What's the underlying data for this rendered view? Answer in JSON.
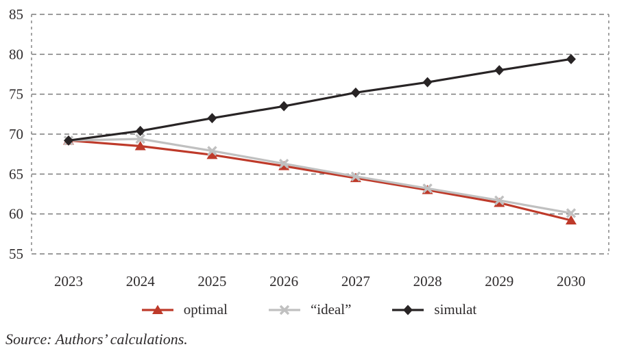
{
  "figure": {
    "source_note": "Source: Authors’ calculations."
  },
  "style": {
    "background": "#ffffff",
    "grid_color": "#7c7c7c",
    "axis_text_color": "#2e2b2c"
  },
  "chart_data": {
    "type": "line",
    "title": "",
    "xlabel": "",
    "ylabel": "",
    "grid": "horizontal-dashed",
    "legend_position": "bottom",
    "categories": [
      "2023",
      "2024",
      "2025",
      "2026",
      "2027",
      "2028",
      "2029",
      "2030"
    ],
    "ylim": [
      55,
      85
    ],
    "yticks": [
      85,
      80,
      75,
      70,
      65,
      60,
      55
    ],
    "series": [
      {
        "name": "optimal",
        "marker": "triangle",
        "color": "#be3a2a",
        "values": [
          69.2,
          68.5,
          67.4,
          66.0,
          64.5,
          63.0,
          61.4,
          59.2
        ]
      },
      {
        "name": "“ideal”",
        "marker": "x",
        "color": "#c0c0c0",
        "values": [
          69.2,
          69.4,
          67.9,
          66.3,
          64.7,
          63.2,
          61.7,
          60.1
        ]
      },
      {
        "name": "simulat",
        "marker": "diamond",
        "color": "#282425",
        "values": [
          69.2,
          70.4,
          72.0,
          73.5,
          75.2,
          76.5,
          78.0,
          79.4
        ]
      }
    ]
  }
}
